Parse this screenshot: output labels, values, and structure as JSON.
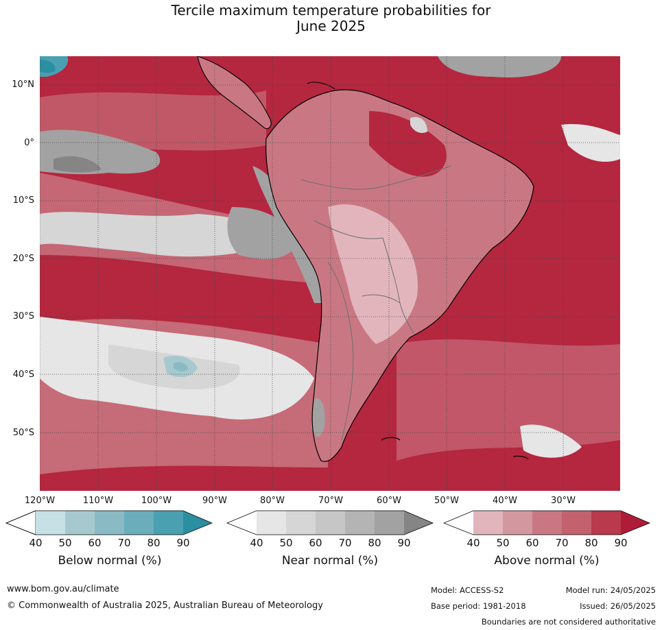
{
  "title": {
    "line1": "Tercile maximum temperature probabilities for",
    "line2": "June 2025"
  },
  "map": {
    "latitude_labels": [
      "10°N",
      "0°",
      "10°S",
      "20°S",
      "30°S",
      "40°S",
      "50°S"
    ],
    "longitude_labels": [
      "120°W",
      "110°W",
      "100°W",
      "90°W",
      "80°W",
      "70°W",
      "60°W",
      "50°W",
      "40°W",
      "30°W"
    ],
    "region": "South America and surrounding oceans",
    "dominant_category": "Above normal"
  },
  "legends": [
    {
      "title": "Below normal (%)",
      "ticks": [
        "40",
        "50",
        "60",
        "70",
        "80",
        "90"
      ],
      "colors": [
        "#ffffff",
        "#c7e0e6",
        "#a6c9cf",
        "#8abac3",
        "#6badba",
        "#4a9fb0",
        "#2b8fa2"
      ]
    },
    {
      "title": "Near normal (%)",
      "ticks": [
        "40",
        "50",
        "60",
        "70",
        "80",
        "90"
      ],
      "colors": [
        "#ffffff",
        "#e6e6e6",
        "#d6d6d6",
        "#c6c6c6",
        "#b4b4b4",
        "#a2a2a2",
        "#858585"
      ]
    },
    {
      "title": "Above normal (%)",
      "ticks": [
        "40",
        "50",
        "60",
        "70",
        "80",
        "90"
      ],
      "colors": [
        "#ffffff",
        "#e2b5bd",
        "#d3979f",
        "#c97883",
        "#c3616f",
        "#b83a4c",
        "#b01c38"
      ]
    }
  ],
  "footer": {
    "website": "www.bom.gov.au/climate",
    "copyright": "© Commonwealth of Australia 2025, Australian Bureau of Meteorology",
    "model": "Model: ACCESS-S2",
    "base_period": "Base period: 1981-2018",
    "model_run": "Model run: 24/05/2025",
    "issued": "Issued: 26/05/2025",
    "disclaimer": "Boundaries are not considered authoritative"
  }
}
